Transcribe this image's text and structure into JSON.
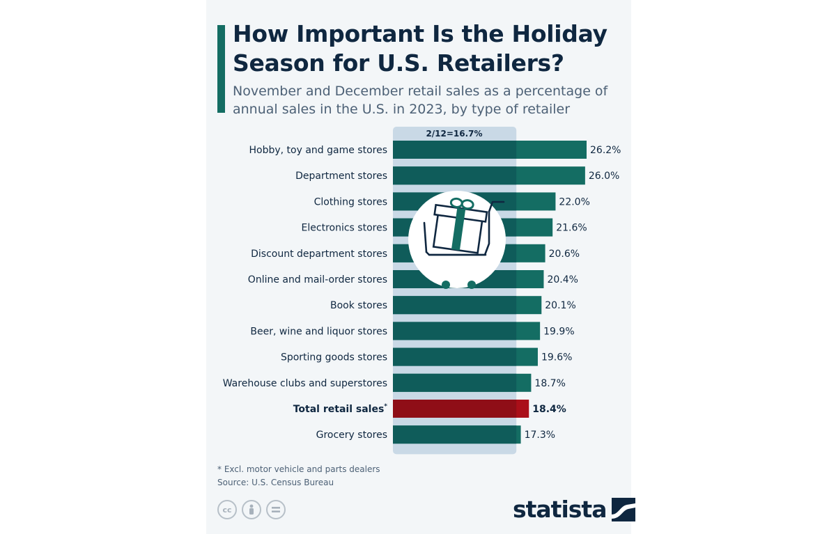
{
  "header": {
    "title": "How Important Is the Holiday Season for U.S. Retailers?",
    "subtitle": "November and December retail sales as a percentage of annual sales in the U.S. in 2023, by type of retailer"
  },
  "chart_data": {
    "type": "bar",
    "orientation": "horizontal",
    "reference_line": {
      "label": "2/12=16.7%",
      "value": 16.7
    },
    "categories": [
      "Hobby, toy and game stores",
      "Department stores",
      "Clothing stores",
      "Electronics stores",
      "Discount department stores",
      "Online and mail-order stores",
      "Book stores",
      "Beer, wine and liquor stores",
      "Sporting goods stores",
      "Warehouse clubs and superstores",
      "Total retail sales",
      "Grocery stores"
    ],
    "values": [
      26.2,
      26.0,
      22.0,
      21.6,
      20.6,
      20.4,
      20.1,
      19.9,
      19.6,
      18.7,
      18.4,
      17.3
    ],
    "value_labels": [
      "26.2%",
      "26.0%",
      "22.0%",
      "21.6%",
      "20.6%",
      "20.4%",
      "20.1%",
      "19.9%",
      "19.6%",
      "18.7%",
      "18.4%",
      "17.3%"
    ],
    "highlight_index": 10,
    "total_marker": "*",
    "xlim": [
      0,
      26.2
    ],
    "colors": {
      "bar": "#146d63",
      "bar_in_band": "#0f5c5a",
      "highlight": "#aa0f19",
      "highlight_in_band": "#8f0e17",
      "band": "#c9d9e6"
    }
  },
  "footer": {
    "footnote": "* Excl. motor vehicle and parts dealers",
    "source": "Source: U.S. Census Bureau",
    "license_icons": [
      "cc-icon",
      "by-icon",
      "nd-icon"
    ],
    "logo_text": "statista"
  }
}
